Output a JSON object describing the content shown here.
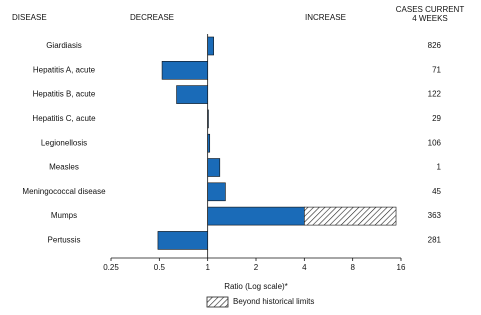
{
  "chart_data": {
    "type": "bar",
    "orientation": "horizontal",
    "headers": {
      "disease": "DISEASE",
      "decrease": "DECREASE",
      "increase": "INCREASE",
      "cases": [
        "CASES CURRENT",
        "4 WEEKS"
      ]
    },
    "categories": [
      "Giardiasis",
      "Hepatitis A, acute",
      "Hepatitis B, acute",
      "Hepatitis C, acute",
      "Legionellosis",
      "Measles",
      "Meningococcal disease",
      "Mumps",
      "Pertussis"
    ],
    "values": [
      1.09,
      0.52,
      0.64,
      1.01,
      1.03,
      1.19,
      1.29,
      14.9,
      0.49
    ],
    "limits": [
      null,
      null,
      null,
      null,
      null,
      null,
      null,
      4,
      null
    ],
    "cases": [
      826,
      71,
      122,
      29,
      106,
      1,
      45,
      363,
      281
    ],
    "color": "#1a6bb8",
    "xscale": "log",
    "xlim": [
      0.25,
      16
    ],
    "xticks": [
      0.25,
      0.5,
      1,
      2,
      4,
      8,
      16
    ],
    "reference_line": 1,
    "xlabel": "Ratio (Log scale)*",
    "legend": "Beyond historical limits"
  }
}
